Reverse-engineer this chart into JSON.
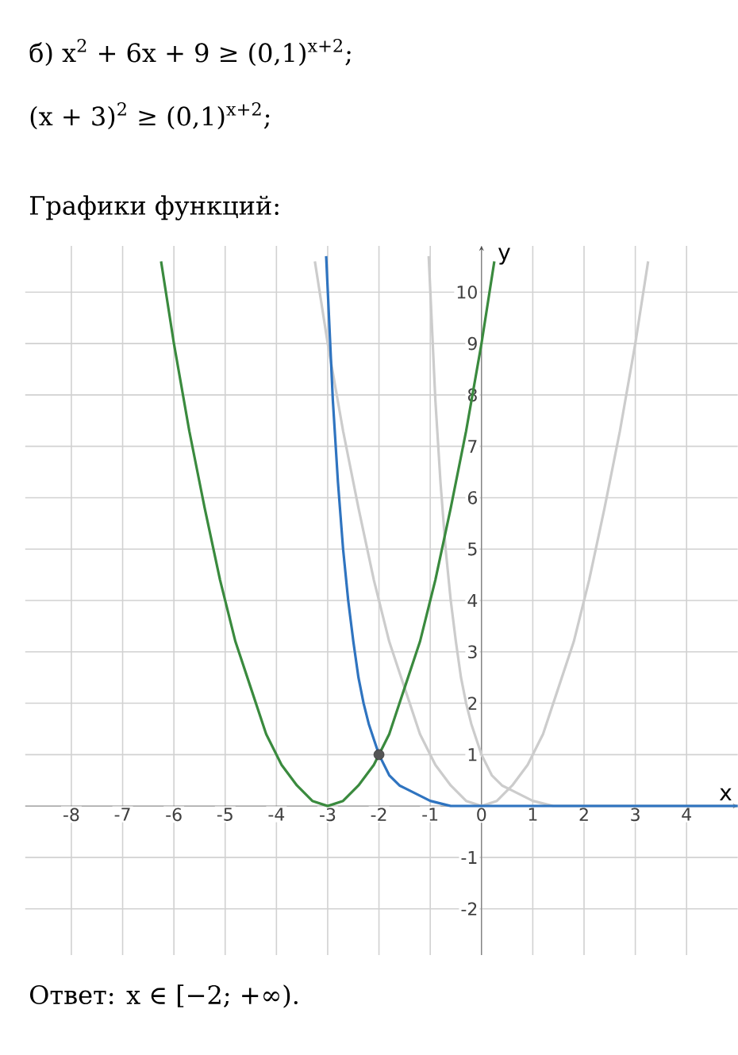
{
  "chart_data": {
    "type": "line",
    "title": "б) x$^{2}$ + 6x + 9 ≥ (0,1)$^{x+2}$;",
    "subtitle": "(x + 3)$^{2}$ ≥ (0,1)$^{x+2}$;",
    "annotations": [
      "Графики функций:",
      "Ответ: x ∈ [−2; +∞)."
    ],
    "xlabel": "x",
    "ylabel": "y",
    "xlim": [
      -8.9,
      5.0
    ],
    "ylim": [
      -2.9,
      10.9
    ],
    "xticks": [
      -8,
      -7,
      -6,
      -5,
      -4,
      -3,
      -2,
      -1,
      0,
      1,
      2,
      3,
      4
    ],
    "yticks": [
      -2,
      -1,
      1,
      2,
      3,
      4,
      5,
      6,
      7,
      8,
      9,
      10
    ],
    "grid": true,
    "line_style": "solid",
    "series": [
      {
        "type": "line",
        "color": "#cccccc",
        "marker": "none",
        "x": [
          -3.25,
          -3.0,
          -2.7,
          -2.4,
          -2.1,
          -1.8,
          -1.5,
          -1.2,
          -0.9,
          -0.6,
          -0.3,
          0,
          0.3,
          0.6,
          0.9,
          1.2,
          1.5,
          1.8,
          2.1,
          2.4,
          2.7,
          3.0,
          3.25
        ],
        "values": [
          10.6,
          9.0,
          7.3,
          5.8,
          4.4,
          3.2,
          2.3,
          1.4,
          0.8,
          0.4,
          0.1,
          0,
          0.1,
          0.4,
          0.8,
          1.4,
          2.3,
          3.2,
          4.4,
          5.8,
          7.3,
          9.0,
          10.6
        ]
      },
      {
        "type": "line",
        "color": "#cccccc",
        "marker": "none",
        "x": [
          -1.03,
          -0.9,
          -0.8,
          -0.7,
          -0.6,
          -0.5,
          -0.4,
          -0.3,
          -0.2,
          -0.1,
          0,
          0.2,
          0.4,
          0.6,
          0.8,
          1.0,
          1.4,
          1.8,
          2.5,
          3.5,
          5.0
        ],
        "values": [
          10.7,
          7.9,
          6.3,
          5.0,
          4.0,
          3.2,
          2.5,
          2.0,
          1.6,
          1.3,
          1,
          0.6,
          0.4,
          0.3,
          0.2,
          0.1,
          0,
          0,
          0,
          0,
          0
        ]
      },
      {
        "type": "line",
        "color": "#3a8a3e",
        "marker": "none",
        "x": [
          -6.25,
          -6.0,
          -5.7,
          -5.4,
          -5.1,
          -4.8,
          -4.5,
          -4.2,
          -3.9,
          -3.6,
          -3.3,
          -3.0,
          -2.7,
          -2.4,
          -2.1,
          -1.8,
          -1.5,
          -1.2,
          -0.9,
          -0.6,
          -0.3,
          0,
          0.25
        ],
        "values": [
          10.6,
          9.0,
          7.3,
          5.8,
          4.4,
          3.2,
          2.3,
          1.4,
          0.8,
          0.4,
          0.1,
          0,
          0.1,
          0.4,
          0.8,
          1.4,
          2.3,
          3.2,
          4.4,
          5.8,
          7.3,
          9.0,
          10.6
        ]
      },
      {
        "type": "line",
        "color": "#2f74c0",
        "marker": "none",
        "x": [
          -3.03,
          -2.9,
          -2.8,
          -2.7,
          -2.6,
          -2.5,
          -2.4,
          -2.3,
          -2.2,
          -2.1,
          -2.0,
          -1.8,
          -1.6,
          -1.4,
          -1.2,
          -1.0,
          -0.6,
          -0.2,
          0.5,
          1.5,
          3.0,
          5.0
        ],
        "values": [
          10.7,
          7.9,
          6.3,
          5.0,
          4.0,
          3.2,
          2.5,
          2.0,
          1.6,
          1.3,
          1,
          0.6,
          0.4,
          0.3,
          0.2,
          0.1,
          0,
          0,
          0,
          0,
          0,
          0
        ]
      },
      {
        "type": "scatter",
        "color": "#555555",
        "marker": "circle",
        "x": [
          -2
        ],
        "values": [
          1
        ]
      }
    ]
  }
}
